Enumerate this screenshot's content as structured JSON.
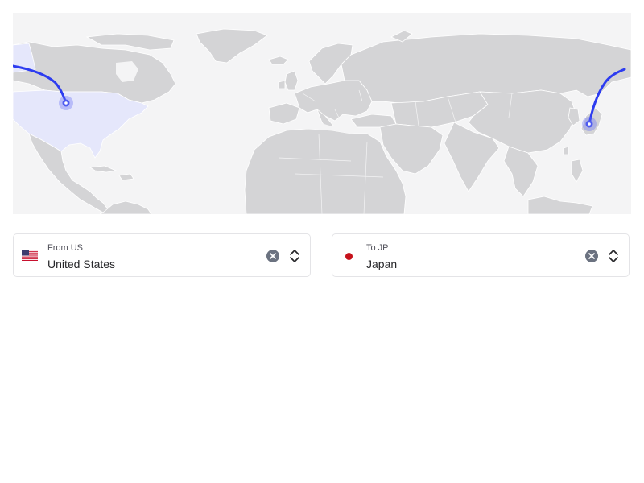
{
  "map": {
    "route_color": "#2d3cf0",
    "highlight_color": "#e5e7fb",
    "origin": "United States",
    "destination": "Japan"
  },
  "from_select": {
    "caption": "From US",
    "value": "United States",
    "flag_icon": "us-flag-icon",
    "clear_icon": "close-circle-icon",
    "toggle_icon": "chevron-up-down-icon"
  },
  "to_select": {
    "caption": "To JP",
    "value": "Japan",
    "flag_icon": "jp-flag-icon",
    "flag_color": "#c6111b",
    "clear_icon": "close-circle-icon",
    "toggle_icon": "chevron-up-down-icon"
  }
}
